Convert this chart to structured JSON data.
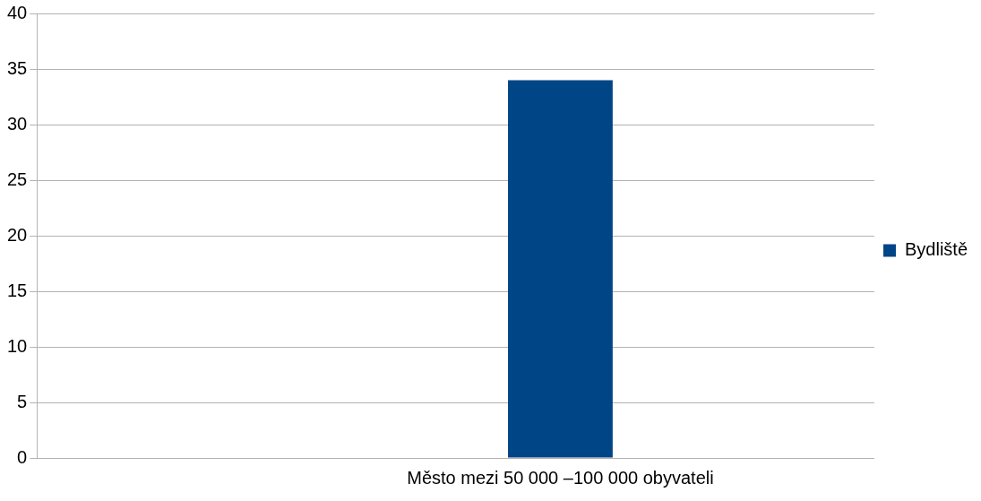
{
  "chart_data": {
    "type": "bar",
    "categories": [
      null,
      null,
      "Město mezi 50 000 –100 000 obyvateli",
      null
    ],
    "series": [
      {
        "name": "Bydliště",
        "color": "#004586",
        "values": [
          0,
          0,
          34,
          0
        ]
      }
    ],
    "ylim": [
      0,
      40
    ],
    "yticks": [
      0,
      5,
      10,
      15,
      20,
      25,
      30,
      35,
      40
    ],
    "grid": "y",
    "legend": "right"
  }
}
